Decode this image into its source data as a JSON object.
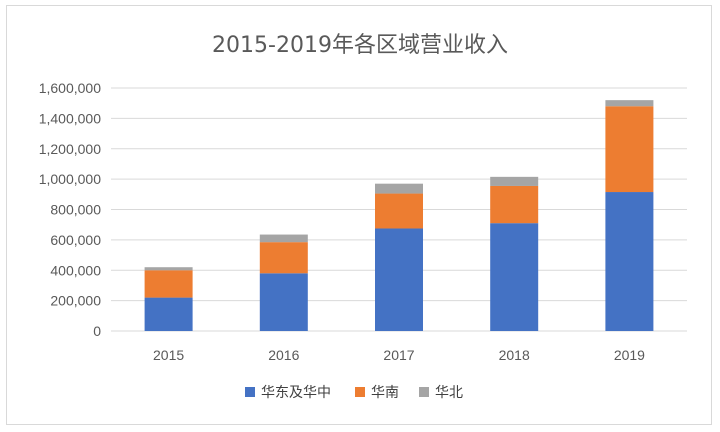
{
  "chart_data": {
    "type": "bar",
    "stacked": true,
    "title": "2015-2019年各区域营业收入",
    "categories": [
      "2015",
      "2016",
      "2017",
      "2018",
      "2019"
    ],
    "series": [
      {
        "name": "华东及华中",
        "color": "#4472c4",
        "values": [
          220000,
          380000,
          675000,
          710000,
          915000
        ]
      },
      {
        "name": "华南",
        "color": "#ed7d31",
        "values": [
          180000,
          205000,
          230000,
          245000,
          565000
        ]
      },
      {
        "name": "华北",
        "color": "#a5a5a5",
        "values": [
          20000,
          50000,
          65000,
          60000,
          40000
        ]
      }
    ],
    "ylim": [
      0,
      1600000
    ],
    "yticks": [
      0,
      200000,
      400000,
      600000,
      800000,
      1000000,
      1200000,
      1400000,
      1600000
    ],
    "ytick_labels": [
      "0",
      "200,000",
      "400,000",
      "600,000",
      "800,000",
      "1,000,000",
      "1,200,000",
      "1,400,000",
      "1,600,000"
    ],
    "grid": true,
    "legend": "bottom",
    "xlabel": "",
    "ylabel": ""
  }
}
